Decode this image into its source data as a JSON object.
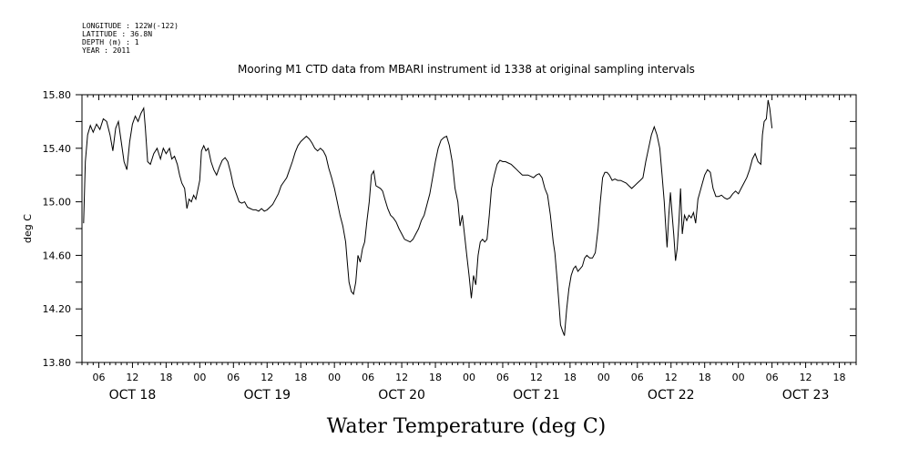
{
  "metadata": {
    "longitude": "LONGITUDE : 122W(-122)",
    "latitude": "LATITUDE : 36.8N",
    "depth": "DEPTH (m) : 1",
    "year": "YEAR : 2011"
  },
  "chart_data": {
    "type": "line",
    "title": "Mooring M1 CTD data from MBARI instrument id 1338 at original sampling intervals",
    "xlabel": "Water Temperature (deg C)",
    "ylabel": "deg C",
    "ylim": [
      13.8,
      15.8
    ],
    "yticks": [
      "13.80",
      "14.20",
      "14.60",
      "15.00",
      "15.40",
      "15.80"
    ],
    "x_unit": "hours since Oct 18 00:00 (2011)",
    "xlim": [
      3,
      141
    ],
    "hour_labels": [
      {
        "h": 6,
        "label": "06"
      },
      {
        "h": 12,
        "label": "12"
      },
      {
        "h": 18,
        "label": "18"
      },
      {
        "h": 24,
        "label": "00"
      },
      {
        "h": 30,
        "label": "06"
      },
      {
        "h": 36,
        "label": "12"
      },
      {
        "h": 42,
        "label": "18"
      },
      {
        "h": 48,
        "label": "00"
      },
      {
        "h": 54,
        "label": "06"
      },
      {
        "h": 60,
        "label": "12"
      },
      {
        "h": 66,
        "label": "18"
      },
      {
        "h": 72,
        "label": "00"
      },
      {
        "h": 78,
        "label": "06"
      },
      {
        "h": 84,
        "label": "12"
      },
      {
        "h": 90,
        "label": "18"
      },
      {
        "h": 96,
        "label": "00"
      },
      {
        "h": 102,
        "label": "06"
      },
      {
        "h": 108,
        "label": "12"
      },
      {
        "h": 114,
        "label": "18"
      },
      {
        "h": 120,
        "label": "00"
      },
      {
        "h": 126,
        "label": "06"
      },
      {
        "h": 132,
        "label": "12"
      },
      {
        "h": 138,
        "label": "18"
      }
    ],
    "day_labels": [
      {
        "h": 12,
        "label": "OCT 18"
      },
      {
        "h": 36,
        "label": "OCT 19"
      },
      {
        "h": 60,
        "label": "OCT 20"
      },
      {
        "h": 84,
        "label": "OCT 21"
      },
      {
        "h": 108,
        "label": "OCT 22"
      },
      {
        "h": 132,
        "label": "OCT 23"
      }
    ],
    "grid": false,
    "series": [
      {
        "color": "#000000",
        "points": [
          [
            3.3,
            14.84
          ],
          [
            3.6,
            15.3
          ],
          [
            4.0,
            15.5
          ],
          [
            4.5,
            15.57
          ],
          [
            5.0,
            15.52
          ],
          [
            5.6,
            15.58
          ],
          [
            6.2,
            15.54
          ],
          [
            6.8,
            15.62
          ],
          [
            7.4,
            15.6
          ],
          [
            8.0,
            15.5
          ],
          [
            8.5,
            15.38
          ],
          [
            9.0,
            15.55
          ],
          [
            9.5,
            15.6
          ],
          [
            10.0,
            15.45
          ],
          [
            10.5,
            15.3
          ],
          [
            11.0,
            15.24
          ],
          [
            11.5,
            15.45
          ],
          [
            12.0,
            15.58
          ],
          [
            12.5,
            15.64
          ],
          [
            13.0,
            15.6
          ],
          [
            13.5,
            15.66
          ],
          [
            14.0,
            15.7
          ],
          [
            14.3,
            15.55
          ],
          [
            14.7,
            15.3
          ],
          [
            15.2,
            15.28
          ],
          [
            15.8,
            15.36
          ],
          [
            16.4,
            15.4
          ],
          [
            17.0,
            15.32
          ],
          [
            17.5,
            15.4
          ],
          [
            18.0,
            15.36
          ],
          [
            18.6,
            15.4
          ],
          [
            19.0,
            15.32
          ],
          [
            19.5,
            15.34
          ],
          [
            20.0,
            15.28
          ],
          [
            20.4,
            15.2
          ],
          [
            20.8,
            15.14
          ],
          [
            21.3,
            15.1
          ],
          [
            21.7,
            14.95
          ],
          [
            22.1,
            15.02
          ],
          [
            22.5,
            15.0
          ],
          [
            22.9,
            15.05
          ],
          [
            23.3,
            15.02
          ],
          [
            23.7,
            15.1
          ],
          [
            24.0,
            15.16
          ],
          [
            24.3,
            15.38
          ],
          [
            24.7,
            15.42
          ],
          [
            25.1,
            15.38
          ],
          [
            25.5,
            15.4
          ],
          [
            26.0,
            15.3
          ],
          [
            26.5,
            15.24
          ],
          [
            27.0,
            15.2
          ],
          [
            27.5,
            15.26
          ],
          [
            28.0,
            15.31
          ],
          [
            28.5,
            15.33
          ],
          [
            29.0,
            15.3
          ],
          [
            29.5,
            15.22
          ],
          [
            30.0,
            15.12
          ],
          [
            30.5,
            15.06
          ],
          [
            31.0,
            15.0
          ],
          [
            31.5,
            14.99
          ],
          [
            32.0,
            15.0
          ],
          [
            32.5,
            14.96
          ],
          [
            33.0,
            14.95
          ],
          [
            33.5,
            14.94
          ],
          [
            34.0,
            14.94
          ],
          [
            34.5,
            14.93
          ],
          [
            35.0,
            14.95
          ],
          [
            35.5,
            14.93
          ],
          [
            36.0,
            14.94
          ],
          [
            36.5,
            14.96
          ],
          [
            37.0,
            14.98
          ],
          [
            37.5,
            15.02
          ],
          [
            38.0,
            15.06
          ],
          [
            38.5,
            15.12
          ],
          [
            39.0,
            15.15
          ],
          [
            39.5,
            15.18
          ],
          [
            40.0,
            15.24
          ],
          [
            40.5,
            15.3
          ],
          [
            41.0,
            15.37
          ],
          [
            41.5,
            15.42
          ],
          [
            42.0,
            15.45
          ],
          [
            42.5,
            15.47
          ],
          [
            43.0,
            15.49
          ],
          [
            43.5,
            15.47
          ],
          [
            44.0,
            15.44
          ],
          [
            44.5,
            15.4
          ],
          [
            45.0,
            15.38
          ],
          [
            45.5,
            15.4
          ],
          [
            46.0,
            15.38
          ],
          [
            46.5,
            15.34
          ],
          [
            47.0,
            15.25
          ],
          [
            47.5,
            15.18
          ],
          [
            48.0,
            15.1
          ],
          [
            48.5,
            15.0
          ],
          [
            49.0,
            14.9
          ],
          [
            49.5,
            14.82
          ],
          [
            50.0,
            14.7
          ],
          [
            50.3,
            14.55
          ],
          [
            50.6,
            14.4
          ],
          [
            51.0,
            14.33
          ],
          [
            51.4,
            14.31
          ],
          [
            51.8,
            14.4
          ],
          [
            52.2,
            14.6
          ],
          [
            52.6,
            14.55
          ],
          [
            53.0,
            14.65
          ],
          [
            53.4,
            14.7
          ],
          [
            53.8,
            14.86
          ],
          [
            54.2,
            15.0
          ],
          [
            54.6,
            15.2
          ],
          [
            55.0,
            15.23
          ],
          [
            55.4,
            15.12
          ],
          [
            55.8,
            15.11
          ],
          [
            56.2,
            15.1
          ],
          [
            56.6,
            15.08
          ],
          [
            57.0,
            15.02
          ],
          [
            57.5,
            14.95
          ],
          [
            58.0,
            14.9
          ],
          [
            58.5,
            14.88
          ],
          [
            59.0,
            14.85
          ],
          [
            59.5,
            14.8
          ],
          [
            60.0,
            14.76
          ],
          [
            60.5,
            14.72
          ],
          [
            61.0,
            14.71
          ],
          [
            61.5,
            14.7
          ],
          [
            62.0,
            14.72
          ],
          [
            62.5,
            14.76
          ],
          [
            63.0,
            14.8
          ],
          [
            63.5,
            14.86
          ],
          [
            64.0,
            14.9
          ],
          [
            64.5,
            14.98
          ],
          [
            65.0,
            15.06
          ],
          [
            65.5,
            15.18
          ],
          [
            66.0,
            15.3
          ],
          [
            66.5,
            15.4
          ],
          [
            67.0,
            15.46
          ],
          [
            67.5,
            15.48
          ],
          [
            68.0,
            15.49
          ],
          [
            68.5,
            15.42
          ],
          [
            69.0,
            15.3
          ],
          [
            69.5,
            15.1
          ],
          [
            70.0,
            15.0
          ],
          [
            70.4,
            14.82
          ],
          [
            70.8,
            14.9
          ],
          [
            71.2,
            14.75
          ],
          [
            71.6,
            14.6
          ],
          [
            72.0,
            14.45
          ],
          [
            72.4,
            14.28
          ],
          [
            72.8,
            14.45
          ],
          [
            73.2,
            14.38
          ],
          [
            73.6,
            14.6
          ],
          [
            74.0,
            14.7
          ],
          [
            74.4,
            14.72
          ],
          [
            74.8,
            14.7
          ],
          [
            75.2,
            14.72
          ],
          [
            75.6,
            14.9
          ],
          [
            76.0,
            15.1
          ],
          [
            76.5,
            15.2
          ],
          [
            77.0,
            15.28
          ],
          [
            77.5,
            15.31
          ],
          [
            78.0,
            15.3
          ],
          [
            78.5,
            15.3
          ],
          [
            79.0,
            15.29
          ],
          [
            79.5,
            15.28
          ],
          [
            80.0,
            15.26
          ],
          [
            80.5,
            15.24
          ],
          [
            81.0,
            15.22
          ],
          [
            81.5,
            15.2
          ],
          [
            82.0,
            15.2
          ],
          [
            82.5,
            15.2
          ],
          [
            83.0,
            15.19
          ],
          [
            83.5,
            15.18
          ],
          [
            84.0,
            15.2
          ],
          [
            84.5,
            15.21
          ],
          [
            85.0,
            15.18
          ],
          [
            85.5,
            15.1
          ],
          [
            86.0,
            15.05
          ],
          [
            86.5,
            14.9
          ],
          [
            87.0,
            14.7
          ],
          [
            87.3,
            14.62
          ],
          [
            87.7,
            14.42
          ],
          [
            88.0,
            14.25
          ],
          [
            88.3,
            14.08
          ],
          [
            88.7,
            14.03
          ],
          [
            89.0,
            14.0
          ],
          [
            89.4,
            14.2
          ],
          [
            89.8,
            14.35
          ],
          [
            90.2,
            14.45
          ],
          [
            90.6,
            14.5
          ],
          [
            91.0,
            14.52
          ],
          [
            91.4,
            14.48
          ],
          [
            91.8,
            14.5
          ],
          [
            92.2,
            14.52
          ],
          [
            92.6,
            14.58
          ],
          [
            93.0,
            14.6
          ],
          [
            93.5,
            14.58
          ],
          [
            94.0,
            14.58
          ],
          [
            94.5,
            14.62
          ],
          [
            95.0,
            14.8
          ],
          [
            95.4,
            15.0
          ],
          [
            95.8,
            15.18
          ],
          [
            96.2,
            15.22
          ],
          [
            96.6,
            15.22
          ],
          [
            97.0,
            15.2
          ],
          [
            97.5,
            15.16
          ],
          [
            98.0,
            15.17
          ],
          [
            98.5,
            15.16
          ],
          [
            99.0,
            15.16
          ],
          [
            99.5,
            15.15
          ],
          [
            100.0,
            15.14
          ],
          [
            100.5,
            15.12
          ],
          [
            101.0,
            15.1
          ],
          [
            101.5,
            15.12
          ],
          [
            102.0,
            15.14
          ],
          [
            102.5,
            15.16
          ],
          [
            103.0,
            15.18
          ],
          [
            103.5,
            15.3
          ],
          [
            104.0,
            15.4
          ],
          [
            104.5,
            15.5
          ],
          [
            105.0,
            15.56
          ],
          [
            105.5,
            15.5
          ],
          [
            106.0,
            15.4
          ],
          [
            106.4,
            15.2
          ],
          [
            106.8,
            15.0
          ],
          [
            107.0,
            14.85
          ],
          [
            107.3,
            14.66
          ],
          [
            107.6,
            14.9
          ],
          [
            107.9,
            15.07
          ],
          [
            108.2,
            14.9
          ],
          [
            108.5,
            14.75
          ],
          [
            108.8,
            14.56
          ],
          [
            109.1,
            14.65
          ],
          [
            109.4,
            14.85
          ],
          [
            109.7,
            15.1
          ],
          [
            110.0,
            14.76
          ],
          [
            110.4,
            14.9
          ],
          [
            110.8,
            14.86
          ],
          [
            111.2,
            14.9
          ],
          [
            111.6,
            14.88
          ],
          [
            112.0,
            14.92
          ],
          [
            112.4,
            14.84
          ],
          [
            112.8,
            15.02
          ],
          [
            113.2,
            15.08
          ],
          [
            113.6,
            15.14
          ],
          [
            114.0,
            15.2
          ],
          [
            114.5,
            15.24
          ],
          [
            115.0,
            15.22
          ],
          [
            115.5,
            15.1
          ],
          [
            116.0,
            15.04
          ],
          [
            116.5,
            15.04
          ],
          [
            117.0,
            15.05
          ],
          [
            117.5,
            15.03
          ],
          [
            118.0,
            15.02
          ],
          [
            118.5,
            15.03
          ],
          [
            119.0,
            15.06
          ],
          [
            119.5,
            15.08
          ],
          [
            120.0,
            15.06
          ],
          [
            120.5,
            15.1
          ],
          [
            121.0,
            15.14
          ],
          [
            121.5,
            15.18
          ],
          [
            122.0,
            15.24
          ],
          [
            122.5,
            15.32
          ],
          [
            123.0,
            15.36
          ],
          [
            123.5,
            15.3
          ],
          [
            124.0,
            15.28
          ],
          [
            124.3,
            15.5
          ],
          [
            124.6,
            15.6
          ],
          [
            125.0,
            15.62
          ],
          [
            125.3,
            15.76
          ],
          [
            125.6,
            15.7
          ],
          [
            126.0,
            15.55
          ]
        ]
      }
    ]
  }
}
